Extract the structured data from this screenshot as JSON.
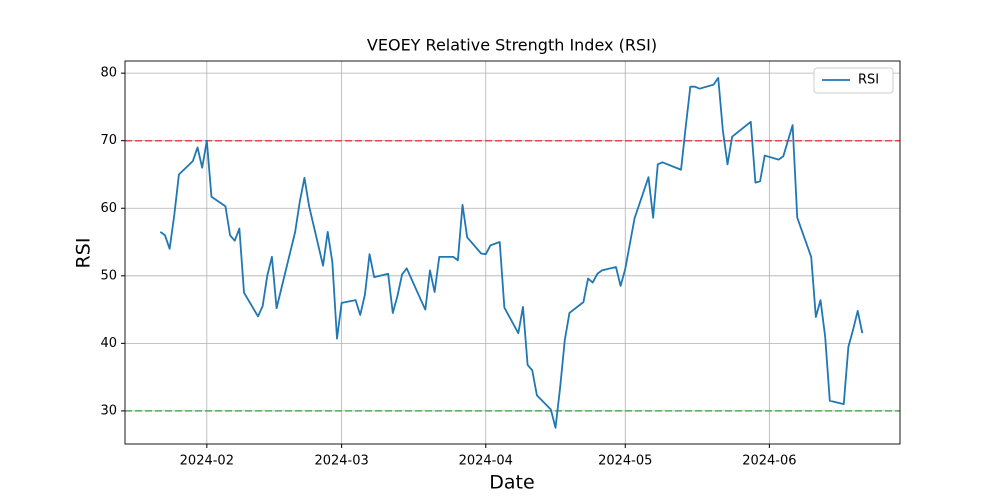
{
  "chart_data": {
    "type": "line",
    "title": "VEOEY Relative Strength Index (RSI)",
    "x_label": "Date",
    "y_label": "RSI",
    "x": [
      22,
      23,
      24,
      25,
      26,
      29,
      30,
      31,
      32,
      33,
      36,
      37,
      38,
      39,
      40,
      43,
      44,
      45,
      46,
      47,
      51,
      52,
      53,
      54,
      57,
      58,
      59,
      60,
      61,
      64,
      65,
      66,
      67,
      68,
      71,
      72,
      73,
      74,
      75,
      78,
      79,
      80,
      81,
      82,
      85,
      86,
      87,
      88,
      91,
      92,
      93,
      95,
      96,
      99,
      100,
      101,
      102,
      103,
      106,
      107,
      108,
      109,
      110,
      113,
      114,
      115,
      116,
      117,
      120,
      121,
      122,
      124,
      127,
      128,
      129,
      130,
      134,
      135,
      136,
      137,
      138,
      141,
      142,
      143,
      144,
      145,
      149,
      150,
      151,
      152,
      155,
      156,
      158,
      159,
      162,
      163,
      164,
      165,
      166,
      169,
      170,
      171,
      172,
      173
    ],
    "series": [
      {
        "name": "RSI",
        "color": "#1f77b4",
        "values": [
          56.5,
          56,
          54,
          59,
          65,
          67,
          69,
          66,
          70,
          61.7,
          60.3,
          56,
          55.2,
          57,
          47.5,
          44,
          45.5,
          50,
          52.8,
          45.2,
          56.5,
          61,
          64.5,
          60.3,
          51.5,
          56.5,
          52,
          40.7,
          46,
          46.4,
          44.2,
          47.2,
          53.2,
          49.8,
          50.3,
          44.5,
          47,
          50.2,
          51.1,
          46.5,
          45,
          50.8,
          47.6,
          52.8,
          52.8,
          52.3,
          60.5,
          55.7,
          53.3,
          53.2,
          54.5,
          55,
          45.3,
          41.5,
          45.4,
          36.8,
          36,
          32.3,
          30.2,
          27.5,
          33.5,
          40.5,
          44.5,
          46.1,
          49.6,
          49,
          50.3,
          50.8,
          51.3,
          48.5,
          51,
          58.5,
          64.6,
          58.6,
          66.5,
          66.8,
          65.7,
          72,
          78,
          78,
          77.7,
          78.3,
          79.3,
          71.5,
          66.5,
          70.6,
          72.8,
          63.8,
          64,
          67.8,
          67.2,
          67.7,
          72.3,
          58.6,
          52.8,
          43.9,
          46.4,
          41,
          31.5,
          31,
          39.5,
          42,
          44.8,
          41.5
        ]
      }
    ],
    "hlines": [
      {
        "value": 70,
        "color": "#e8474a"
      },
      {
        "value": 30,
        "color": "#4caf50"
      }
    ],
    "xlim": [
      14.4,
      181.1
    ],
    "xticks": [
      {
        "value": 32,
        "label": "2024-02"
      },
      {
        "value": 61,
        "label": "2024-03"
      },
      {
        "value": 92,
        "label": "2024-04"
      },
      {
        "value": 122,
        "label": "2024-05"
      },
      {
        "value": 153,
        "label": "2024-06"
      }
    ],
    "ylim": [
      25.1,
      81.8
    ],
    "yticks": [
      30,
      40,
      50,
      60,
      70,
      80
    ],
    "grid": true,
    "legend": "upper right"
  }
}
